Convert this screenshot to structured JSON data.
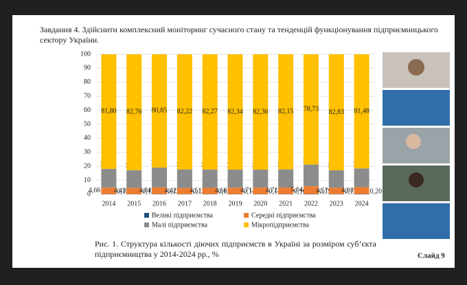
{
  "slide": {
    "task": "Завдання 4. Здійснити комплексний моніторинг сучасного стану та тенденцій функціонування підприємницького сектору України.",
    "caption": "Рис. 1. Структура кількості діючих підприємств в Україні за розміром суб’єкта підприємництва у 2014-2024 рр., %",
    "slide_number": "Слайд 9"
  },
  "chart_data": {
    "type": "stacked-bar",
    "categories": [
      "2014",
      "2015",
      "2016",
      "2017",
      "2018",
      "2019",
      "2020",
      "2021",
      "2022",
      "2023",
      "2024"
    ],
    "ylim": [
      0,
      100
    ],
    "yticks": [
      0,
      10,
      20,
      30,
      40,
      50,
      60,
      70,
      80,
      90,
      100
    ],
    "series": [
      {
        "name": "Великі підприємства",
        "color": "#1f4e79",
        "values": [
          0.15,
          0.12,
          0.13,
          0.12,
          0.13,
          0.14,
          0.14,
          0.16,
          0.19,
          0.17,
          0.2
        ],
        "value_labels": [
          "0,15",
          "0,12",
          "0,13",
          "0,12",
          "0,13",
          "0,14",
          "0,14",
          "0,16",
          "0,19",
          "0,17",
          "0,20"
        ]
      },
      {
        "name": "Середні підприємства",
        "color": "#ed7d31",
        "values": [
          4.66,
          4.43,
          4.84,
          4.42,
          4.51,
          4.66,
          4.71,
          4.72,
          5.64,
          4.57,
          4.93
        ],
        "value_labels": [
          "4,66",
          "4,43",
          "4,84",
          "4,42",
          "4,51",
          "4,66",
          "4,71",
          "4,72",
          "5,64",
          "4,57",
          "4,93"
        ]
      },
      {
        "name": "Малі підприємства",
        "color": "#8c8c8c",
        "values": [
          13.39,
          12.69,
          14.19,
          13.25,
          13.09,
          12.86,
          12.8,
          12.96,
          15.44,
          12.44,
          13.39
        ],
        "value_labels": [
          "13,39",
          "12,69",
          "14,19",
          "13,25",
          "13,09",
          "12,86",
          "12,80",
          "12,96",
          "15,44",
          "12,44",
          "13,39"
        ]
      },
      {
        "name": "Мікропідприємства",
        "color": "#ffc000",
        "values": [
          81.8,
          82.76,
          80.85,
          82.22,
          82.27,
          82.34,
          82.36,
          82.15,
          78.73,
          82.83,
          81.48
        ],
        "value_labels": [
          "81,80",
          "82,76",
          "80,85",
          "82,22",
          "82,27",
          "82,34",
          "82,36",
          "82,15",
          "78,73",
          "82,83",
          "81,48"
        ]
      }
    ]
  }
}
